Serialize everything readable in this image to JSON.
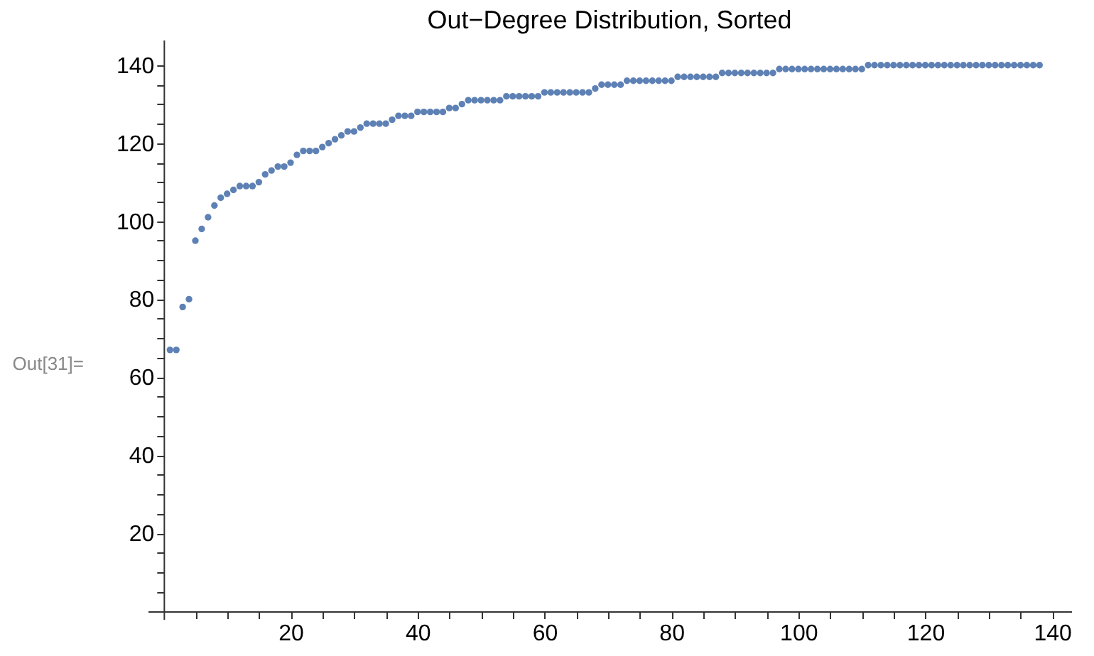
{
  "chart_data": {
    "type": "scatter",
    "title": "Out−Degree Distribution, Sorted",
    "annotations": [
      "Out[31]="
    ],
    "x": [
      1,
      2,
      3,
      4,
      5,
      6,
      7,
      8,
      9,
      10,
      11,
      12,
      13,
      14,
      15,
      16,
      17,
      18,
      19,
      20,
      21,
      22,
      23,
      24,
      25,
      26,
      27,
      28,
      29,
      30,
      31,
      32,
      33,
      34,
      35,
      36,
      37,
      38,
      39,
      40,
      41,
      42,
      43,
      44,
      45,
      46,
      47,
      48,
      49,
      50,
      51,
      52,
      53,
      54,
      55,
      56,
      57,
      58,
      59,
      60,
      61,
      62,
      63,
      64,
      65,
      66,
      67,
      68,
      69,
      70,
      71,
      72,
      73,
      74,
      75,
      76,
      77,
      78,
      79,
      80,
      81,
      82,
      83,
      84,
      85,
      86,
      87,
      88,
      89,
      90,
      91,
      92,
      93,
      94,
      95,
      96,
      97,
      98,
      99,
      100,
      101,
      102,
      103,
      104,
      105,
      106,
      107,
      108,
      109,
      110,
      111,
      112,
      113,
      114,
      115,
      116,
      117,
      118,
      119,
      120,
      121,
      122,
      123,
      124,
      125,
      126,
      127,
      128,
      129,
      130,
      131,
      132,
      133,
      134,
      135,
      136,
      137,
      138
    ],
    "series": [
      {
        "color": "#5e81b5",
        "values": [
          67,
          67,
          78,
          80,
          95,
          98,
          101,
          104,
          106,
          107,
          108,
          109,
          109,
          109,
          110,
          112,
          113,
          114,
          114,
          115,
          117,
          118,
          118,
          118,
          119,
          120,
          121,
          122,
          123,
          123,
          124,
          125,
          125,
          125,
          125,
          126,
          127,
          127,
          127,
          128,
          128,
          128,
          128,
          128,
          129,
          129,
          130,
          131,
          131,
          131,
          131,
          131,
          131,
          132,
          132,
          132,
          132,
          132,
          132,
          133,
          133,
          133,
          133,
          133,
          133,
          133,
          133,
          134,
          135,
          135,
          135,
          135,
          136,
          136,
          136,
          136,
          136,
          136,
          136,
          136,
          137,
          137,
          137,
          137,
          137,
          137,
          137,
          138,
          138,
          138,
          138,
          138,
          138,
          138,
          138,
          138,
          139,
          139,
          139,
          139,
          139,
          139,
          139,
          139,
          139,
          139,
          139,
          139,
          139,
          139,
          140,
          140,
          140,
          140,
          140,
          140,
          140,
          140,
          140,
          140,
          140,
          140,
          140,
          140,
          140,
          140,
          140,
          140,
          140,
          140,
          140,
          140,
          140,
          140,
          140,
          140,
          140,
          140
        ]
      }
    ],
    "marker": "circle",
    "xlim": [
      -2.5,
      143
    ],
    "ylim": [
      -2,
      146.5
    ],
    "xticks": [
      {
        "value": 5,
        "label": null
      },
      {
        "value": 10,
        "label": null
      },
      {
        "value": 15,
        "label": null
      },
      20,
      {
        "value": 25,
        "label": null
      },
      {
        "value": 30,
        "label": null
      },
      {
        "value": 35,
        "label": null
      },
      40,
      {
        "value": 45,
        "label": null
      },
      {
        "value": 50,
        "label": null
      },
      {
        "value": 55,
        "label": null
      },
      60,
      {
        "value": 65,
        "label": null
      },
      {
        "value": 70,
        "label": null
      },
      {
        "value": 75,
        "label": null
      },
      80,
      {
        "value": 85,
        "label": null
      },
      {
        "value": 90,
        "label": null
      },
      {
        "value": 95,
        "label": null
      },
      100,
      {
        "value": 105,
        "label": null
      },
      {
        "value": 110,
        "label": null
      },
      {
        "value": 115,
        "label": null
      },
      120,
      {
        "value": 125,
        "label": null
      },
      {
        "value": 130,
        "label": null
      },
      {
        "value": 135,
        "label": null
      },
      140
    ],
    "yticks": [
      {
        "value": 5,
        "label": null
      },
      {
        "value": 10,
        "label": null
      },
      {
        "value": 15,
        "label": null
      },
      20,
      {
        "value": 25,
        "label": null
      },
      {
        "value": 30,
        "label": null
      },
      {
        "value": 35,
        "label": null
      },
      40,
      {
        "value": 45,
        "label": null
      },
      {
        "value": 50,
        "label": null
      },
      {
        "value": 55,
        "label": null
      },
      60,
      {
        "value": 65,
        "label": null
      },
      {
        "value": 70,
        "label": null
      },
      {
        "value": 75,
        "label": null
      },
      80,
      {
        "value": 85,
        "label": null
      },
      {
        "value": 90,
        "label": null
      },
      {
        "value": 95,
        "label": null
      },
      100,
      {
        "value": 105,
        "label": null
      },
      {
        "value": 110,
        "label": null
      },
      {
        "value": 115,
        "label": null
      },
      120,
      {
        "value": 125,
        "label": null
      },
      {
        "value": 130,
        "label": null
      },
      {
        "value": 135,
        "label": null
      },
      140
    ],
    "grid": false
  }
}
